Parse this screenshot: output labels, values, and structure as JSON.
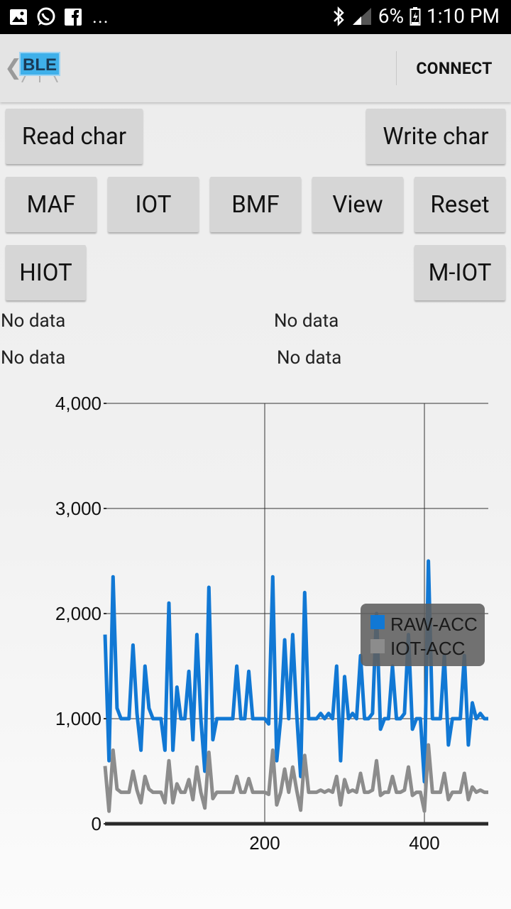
{
  "status_bar": {
    "left_icons": [
      "gallery-icon",
      "whatsapp-icon",
      "facebook-icon"
    ],
    "more": "...",
    "battery": "6%",
    "time": "1:10 PM"
  },
  "app_bar": {
    "logo_text": "BLE",
    "action": "CONNECT"
  },
  "buttons": {
    "read_char": "Read char",
    "write_char": "Write char",
    "maf": "MAF",
    "iot": "IOT",
    "bmf": "BMF",
    "view": "View",
    "reset": "Reset",
    "hiot": "HIOT",
    "m_iot": "M-IOT"
  },
  "labels": {
    "row1_left": "No data",
    "row1_right": "No data",
    "row2_left": "No data",
    "row2_right": "No data"
  },
  "chart_data": {
    "type": "line",
    "ylim": [
      0,
      4000
    ],
    "xlim": [
      0,
      480
    ],
    "y_ticks": [
      0,
      1000,
      2000,
      3000,
      4000
    ],
    "y_tick_labels": [
      "0",
      "1,000",
      "2,000",
      "3,000",
      "4,000"
    ],
    "x_ticks": [
      200,
      400
    ],
    "x_tick_labels": [
      "200",
      "400"
    ],
    "grid": true,
    "legend_position": "right",
    "series": [
      {
        "name": "RAW-ACC",
        "color": "#1178d4",
        "x": [
          0,
          5,
          10,
          15,
          20,
          25,
          30,
          35,
          40,
          45,
          50,
          55,
          60,
          65,
          70,
          75,
          80,
          85,
          90,
          95,
          100,
          105,
          110,
          115,
          120,
          125,
          130,
          135,
          140,
          145,
          150,
          155,
          160,
          165,
          170,
          175,
          180,
          185,
          190,
          195,
          200,
          205,
          210,
          215,
          220,
          225,
          230,
          235,
          240,
          245,
          250,
          255,
          260,
          265,
          270,
          275,
          280,
          285,
          290,
          295,
          300,
          305,
          310,
          315,
          320,
          325,
          330,
          335,
          340,
          345,
          350,
          355,
          360,
          365,
          370,
          375,
          380,
          385,
          390,
          395,
          400,
          405,
          410,
          415,
          420,
          425,
          430,
          435,
          440,
          445,
          450,
          455,
          460,
          465,
          470,
          475,
          480
        ],
        "values": [
          1800,
          600,
          2350,
          1100,
          1000,
          1000,
          1000,
          1700,
          1050,
          700,
          1500,
          1100,
          1000,
          1000,
          1000,
          700,
          2100,
          700,
          1300,
          1000,
          1000,
          1450,
          800,
          1800,
          1000,
          500,
          2250,
          800,
          1000,
          1000,
          1000,
          1000,
          1000,
          1500,
          1000,
          1000,
          1450,
          1000,
          1000,
          1000,
          1000,
          950,
          2350,
          600,
          1000,
          1750,
          1000,
          1800,
          1050,
          450,
          2200,
          1000,
          1000,
          1000,
          1050,
          1000,
          1050,
          1000,
          1500,
          600,
          1400,
          1000,
          1050,
          1000,
          1600,
          1000,
          1000,
          1050,
          2000,
          900,
          1000,
          1000,
          1500,
          1000,
          1000,
          1050,
          1800,
          900,
          1000,
          1000,
          400,
          2500,
          1000,
          1000,
          1000,
          1600,
          750,
          1000,
          1000,
          1000,
          1600,
          750,
          1150,
          1000,
          1050,
          1000,
          1000
        ]
      },
      {
        "name": "IOT-ACC",
        "color": "#8c8c8c",
        "x": [
          0,
          5,
          10,
          15,
          20,
          25,
          30,
          35,
          40,
          45,
          50,
          55,
          60,
          65,
          70,
          75,
          80,
          85,
          90,
          95,
          100,
          105,
          110,
          115,
          120,
          125,
          130,
          135,
          140,
          145,
          150,
          155,
          160,
          165,
          170,
          175,
          180,
          185,
          190,
          195,
          200,
          205,
          210,
          215,
          220,
          225,
          230,
          235,
          240,
          245,
          250,
          255,
          260,
          265,
          270,
          275,
          280,
          285,
          290,
          295,
          300,
          305,
          310,
          315,
          320,
          325,
          330,
          335,
          340,
          345,
          350,
          355,
          360,
          365,
          370,
          375,
          380,
          385,
          390,
          395,
          400,
          405,
          410,
          415,
          420,
          425,
          430,
          435,
          440,
          445,
          450,
          455,
          460,
          465,
          470,
          475,
          480
        ],
        "values": [
          550,
          120,
          700,
          330,
          300,
          300,
          300,
          500,
          320,
          200,
          450,
          330,
          300,
          300,
          300,
          200,
          600,
          200,
          380,
          300,
          300,
          420,
          230,
          540,
          300,
          150,
          680,
          240,
          300,
          300,
          300,
          300,
          300,
          450,
          300,
          300,
          430,
          300,
          300,
          300,
          300,
          280,
          700,
          180,
          300,
          520,
          300,
          540,
          320,
          130,
          650,
          300,
          300,
          300,
          320,
          300,
          320,
          300,
          450,
          180,
          420,
          300,
          320,
          300,
          480,
          300,
          300,
          320,
          600,
          270,
          300,
          300,
          450,
          300,
          300,
          320,
          540,
          270,
          300,
          300,
          120,
          750,
          300,
          300,
          300,
          480,
          230,
          300,
          300,
          300,
          480,
          230,
          350,
          300,
          320,
          300,
          300
        ]
      }
    ]
  }
}
